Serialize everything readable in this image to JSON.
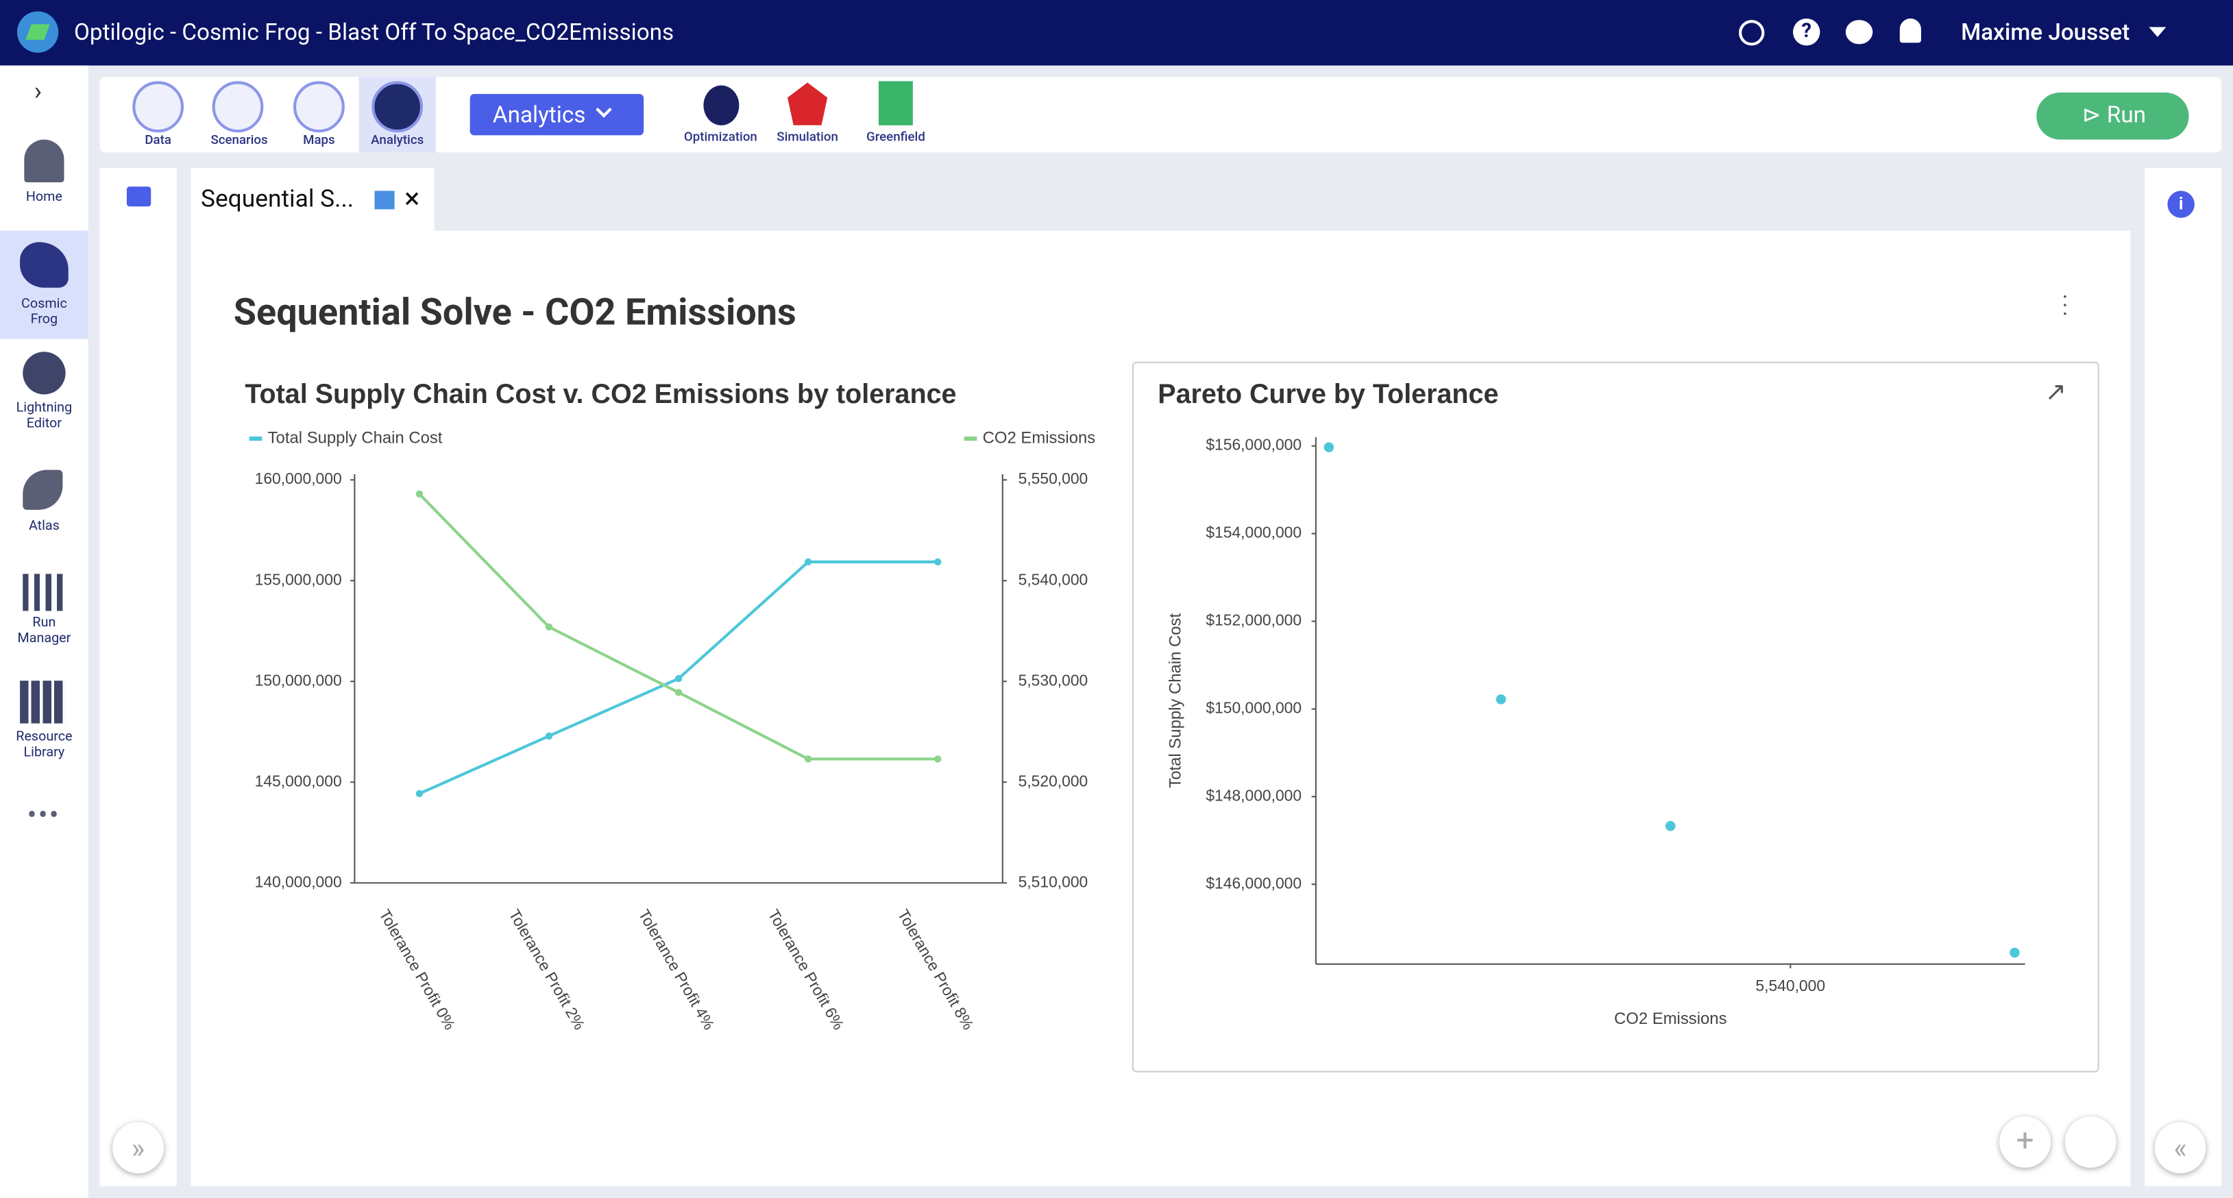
{
  "header": {
    "title": "Optilogic - Cosmic Frog - Blast Off To Space_CO2Emissions",
    "user": "Maxime Jousset"
  },
  "sidebar": [
    "Home",
    "Cosmic Frog",
    "Lightning Editor",
    "Atlas",
    "Run Manager",
    "Resource Library"
  ],
  "toolbar": {
    "modules": [
      "Data",
      "Scenarios",
      "Maps",
      "Analytics"
    ],
    "dropdown": "Analytics",
    "tools": [
      "Optimization",
      "Simulation",
      "Greenfield"
    ],
    "run": "Run"
  },
  "tab": "Sequential S...",
  "dashboard_title": "Sequential Solve - CO2 Emissions",
  "chart_data": [
    {
      "type": "line",
      "title": "Total Supply Chain Cost v. CO2 Emissions by tolerance",
      "categories": [
        "Tolerance Profit 0%",
        "Tolerance Profit 2%",
        "Tolerance Profit 4%",
        "Tolerance Profit 6%",
        "Tolerance Profit 8%"
      ],
      "series": [
        {
          "name": "Total Supply Chain Cost",
          "color": "#4cc7d9",
          "values": [
            144430000,
            147290000,
            150140000,
            155930000,
            155930000
          ]
        },
        {
          "name": "CO2 Emissions",
          "color": "#8dd38b",
          "axis": "y2",
          "values": [
            5548600,
            5535400,
            5528900,
            5522300,
            5522300
          ]
        }
      ],
      "ylim": [
        140000000,
        160000000
      ],
      "yticks": [
        {
          "value": 140000000,
          "label": "140,000,000"
        },
        {
          "value": 145000000,
          "label": "145,000,000"
        },
        {
          "value": 150000000,
          "label": "150,000,000"
        },
        {
          "value": 155000000,
          "label": "155,000,000"
        },
        {
          "value": 160000000,
          "label": "160,000,000"
        }
      ],
      "y2lim": [
        5510000,
        5550000
      ],
      "y2ticks": [
        {
          "value": 5510000,
          "label": "5,510,000"
        },
        {
          "value": 5520000,
          "label": "5,520,000"
        },
        {
          "value": 5530000,
          "label": "5,530,000"
        },
        {
          "value": 5540000,
          "label": "5,540,000"
        },
        {
          "value": 5550000,
          "label": "5,550,000"
        }
      ],
      "legend": "top"
    },
    {
      "type": "scatter",
      "title": "Pareto Curve by Tolerance",
      "xlabel": "CO2 Emissions",
      "ylabel": "Total Supply Chain Cost",
      "color": "#4cc7d9",
      "x": [
        5522300,
        5528900,
        5535400,
        5548600
      ],
      "values": [
        155970000,
        150220000,
        147330000,
        144440000
      ],
      "xlim": [
        5521800,
        5549000
      ],
      "xticks": [
        {
          "value": 5540000,
          "label": "5,540,000"
        }
      ],
      "ylim": [
        144180000,
        156200000
      ],
      "yticks": [
        {
          "value": 146000000,
          "label": "$146,000,000"
        },
        {
          "value": 148000000,
          "label": "$148,000,000"
        },
        {
          "value": 150000000,
          "label": "$150,000,000"
        },
        {
          "value": 152000000,
          "label": "$152,000,000"
        },
        {
          "value": 154000000,
          "label": "$154,000,000"
        },
        {
          "value": 156000000,
          "label": "$156,000,000"
        }
      ]
    }
  ]
}
